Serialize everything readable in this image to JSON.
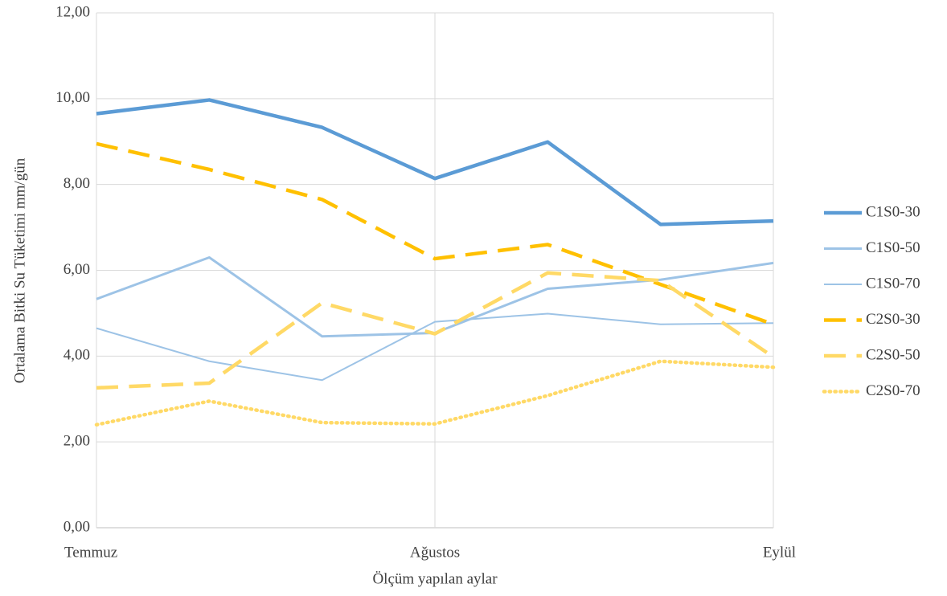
{
  "chart_data": {
    "type": "line",
    "x_label": "Ölçüm yapılan aylar",
    "y_label": "Ortalama Bitki Su Tüketimi mm/gün",
    "categories": [
      "Temmuz",
      null,
      null,
      "Ağustos",
      null,
      null,
      "Eylül"
    ],
    "series": [
      {
        "name": "C1S0-30",
        "color": "#5b9bd5",
        "dash": "solid",
        "weight": "thick",
        "values": [
          9.65,
          9.97,
          9.33,
          8.14,
          8.99,
          7.07,
          7.15
        ]
      },
      {
        "name": "C1S0-50",
        "color": "#9dc3e6",
        "dash": "solid",
        "weight": "medium",
        "values": [
          5.33,
          6.3,
          4.46,
          4.54,
          5.57,
          5.78,
          6.17
        ]
      },
      {
        "name": "C1S0-70",
        "color": "#9dc3e6",
        "dash": "solid",
        "weight": "thin",
        "values": [
          4.65,
          3.88,
          3.44,
          4.8,
          4.99,
          4.74,
          4.77
        ]
      },
      {
        "name": "C2S0-30",
        "color": "#ffc000",
        "dash": "dashed",
        "weight": "thick",
        "values": [
          8.95,
          8.35,
          7.65,
          6.27,
          6.6,
          5.67,
          4.74
        ]
      },
      {
        "name": "C2S0-50",
        "color": "#ffd966",
        "dash": "dashed",
        "weight": "thick",
        "values": [
          3.26,
          3.37,
          5.24,
          4.52,
          5.94,
          5.76,
          3.98
        ]
      },
      {
        "name": "C2S0-70",
        "color": "#ffd966",
        "dash": "dotted",
        "weight": "thick",
        "values": [
          2.4,
          2.95,
          2.45,
          2.42,
          3.08,
          3.88,
          3.74
        ]
      }
    ],
    "ylim": [
      0,
      12
    ],
    "yticks": [
      {
        "value": 0,
        "label": "0,00"
      },
      {
        "value": 2,
        "label": "2,00"
      },
      {
        "value": 4,
        "label": "4,00"
      },
      {
        "value": 6,
        "label": "6,00"
      },
      {
        "value": 8,
        "label": "8,00"
      },
      {
        "value": 10,
        "label": "10,00"
      },
      {
        "value": 12,
        "label": "12,00"
      }
    ],
    "grid": true,
    "legend": "right"
  }
}
